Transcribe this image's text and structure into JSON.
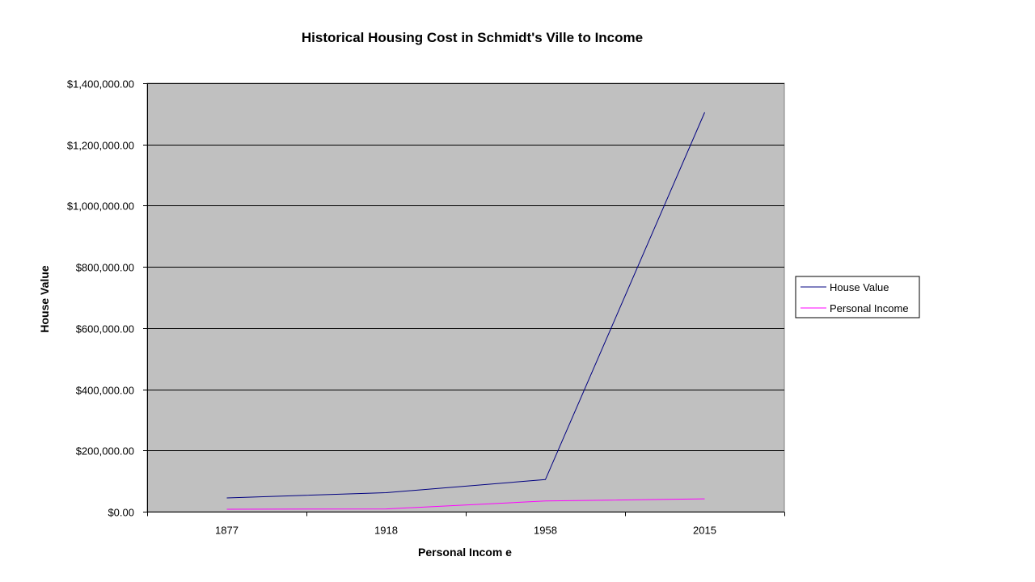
{
  "chart_data": {
    "type": "line",
    "title": "Historical Housing Cost in Schmidt's Ville to Income",
    "xlabel": "Personal Incom e",
    "ylabel": "House Value",
    "categories": [
      "1877",
      "1918",
      "1958",
      "2015"
    ],
    "series": [
      {
        "name": "House Value",
        "values": [
          45000,
          62000,
          105000,
          1305000
        ],
        "color": "#000080"
      },
      {
        "name": "Personal Income",
        "values": [
          8000,
          9000,
          35000,
          42000
        ],
        "color": "#ff00ff"
      }
    ],
    "ylim": [
      0,
      1400000
    ],
    "yticks": [
      0,
      200000,
      400000,
      600000,
      800000,
      1000000,
      1200000,
      1400000
    ],
    "ytick_labels": [
      "$0.00",
      "$200,000.00",
      "$400,000.00",
      "$600,000.00",
      "$800,000.00",
      "$1,000,000.00",
      "$1,200,000.00",
      "$1,400,000.00"
    ],
    "grid": true,
    "plot_background": "#c0c0c0",
    "legend_position": "right"
  }
}
